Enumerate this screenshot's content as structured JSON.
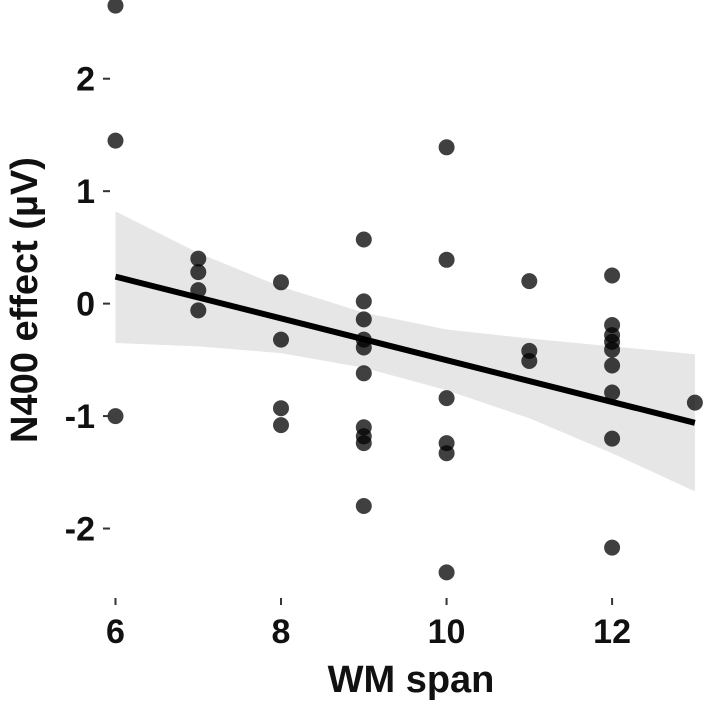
{
  "chart_data": {
    "type": "scatter",
    "xlabel": "WM span",
    "ylabel": "N400 effect (µV)",
    "xlim": [
      5.97,
      13.05
    ],
    "ylim": [
      -2.6,
      2.7
    ],
    "x_ticks": [
      6,
      8,
      10,
      12
    ],
    "x_tick_labels": [
      "6",
      "8",
      "10",
      "12"
    ],
    "y_ticks": [
      -2,
      -1,
      0,
      1,
      2
    ],
    "y_tick_labels": [
      "-2",
      "-1",
      "0",
      "1",
      "2"
    ],
    "grid": false,
    "points": [
      {
        "x": 6,
        "y": 2.65
      },
      {
        "x": 6,
        "y": 1.45
      },
      {
        "x": 6,
        "y": -1.0
      },
      {
        "x": 7,
        "y": 0.4
      },
      {
        "x": 7,
        "y": 0.28
      },
      {
        "x": 7,
        "y": 0.12
      },
      {
        "x": 7,
        "y": -0.06
      },
      {
        "x": 8,
        "y": 0.19
      },
      {
        "x": 8,
        "y": -0.32
      },
      {
        "x": 8,
        "y": -0.93
      },
      {
        "x": 8,
        "y": -1.08
      },
      {
        "x": 9,
        "y": 0.57
      },
      {
        "x": 9,
        "y": 0.02
      },
      {
        "x": 9,
        "y": -0.14
      },
      {
        "x": 9,
        "y": -0.32
      },
      {
        "x": 9,
        "y": -0.39
      },
      {
        "x": 9,
        "y": -0.62
      },
      {
        "x": 9,
        "y": -1.1
      },
      {
        "x": 9,
        "y": -1.18
      },
      {
        "x": 9,
        "y": -1.24
      },
      {
        "x": 9,
        "y": -1.8
      },
      {
        "x": 10,
        "y": 1.39
      },
      {
        "x": 10,
        "y": 0.39
      },
      {
        "x": 10,
        "y": -0.84
      },
      {
        "x": 10,
        "y": -1.24
      },
      {
        "x": 10,
        "y": -1.33
      },
      {
        "x": 10,
        "y": -2.39
      },
      {
        "x": 11,
        "y": 0.2
      },
      {
        "x": 11,
        "y": -0.42
      },
      {
        "x": 11,
        "y": -0.51
      },
      {
        "x": 12,
        "y": 0.25
      },
      {
        "x": 12,
        "y": -0.19
      },
      {
        "x": 12,
        "y": -0.28
      },
      {
        "x": 12,
        "y": -0.34
      },
      {
        "x": 12,
        "y": -0.41
      },
      {
        "x": 12,
        "y": -0.55
      },
      {
        "x": 12,
        "y": -0.79
      },
      {
        "x": 12,
        "y": -1.2
      },
      {
        "x": 12,
        "y": -2.17
      },
      {
        "x": 13,
        "y": -0.88
      }
    ],
    "regression": {
      "x": [
        6,
        13
      ],
      "y": [
        0.24,
        -1.06
      ]
    },
    "confidence_band": {
      "x": [
        6,
        7,
        8,
        9,
        10,
        11,
        12,
        13
      ],
      "upper": [
        0.82,
        0.45,
        0.15,
        -0.08,
        -0.23,
        -0.31,
        -0.38,
        -0.45
      ],
      "lower": [
        -0.35,
        -0.38,
        -0.44,
        -0.57,
        -0.77,
        -1.02,
        -1.33,
        -1.67
      ]
    },
    "colors": {
      "points": "#000000",
      "points_alpha": 0.75,
      "fit_line": "#000000",
      "band": "#e6e6e6"
    }
  }
}
